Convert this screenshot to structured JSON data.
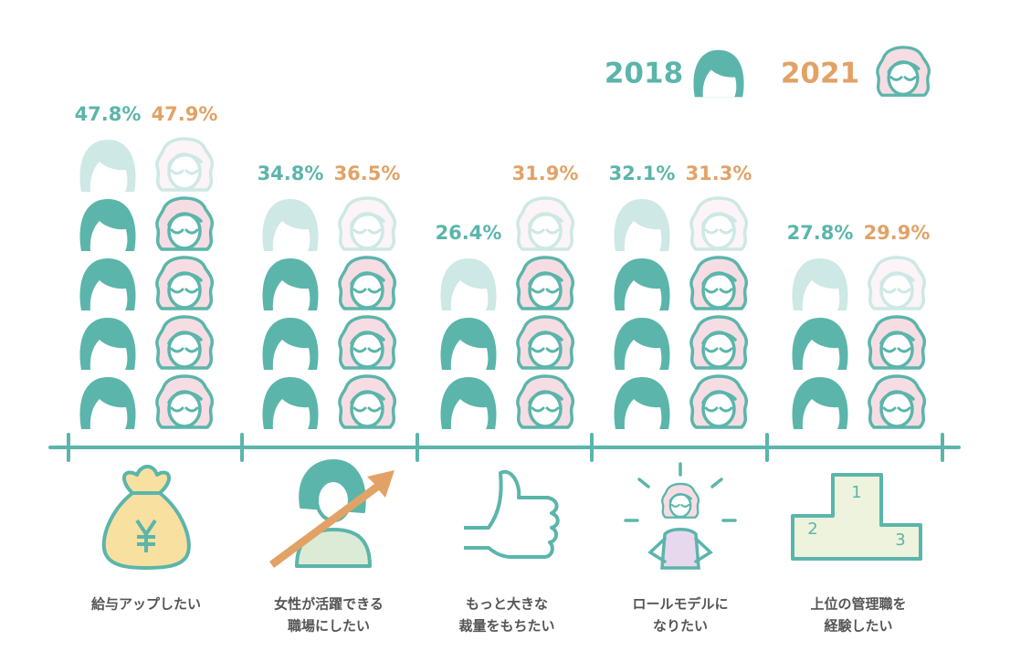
{
  "chart_data": {
    "type": "pictogram",
    "categories": [
      [
        "給与アップしたい"
      ],
      [
        "女性が活躍できる",
        "職場にしたい"
      ],
      [
        "もっと大きな",
        "裁量をもちたい"
      ],
      [
        "ロールモデルに",
        "なりたい"
      ],
      [
        "上位の管理職を",
        "経験したい"
      ]
    ],
    "series": [
      {
        "name": "2018",
        "color": "#5bb5aa",
        "values": [
          47.8,
          34.8,
          26.4,
          32.1,
          27.8
        ],
        "value_labels": [
          "47.8%",
          "34.8%",
          "26.4%",
          "32.1%",
          "27.8%"
        ]
      },
      {
        "name": "2021",
        "color": "#e2a266",
        "values": [
          47.9,
          36.5,
          31.9,
          31.3,
          29.9
        ],
        "value_labels": [
          "47.9%",
          "36.5%",
          "31.9%",
          "31.3%",
          "29.9%"
        ]
      }
    ],
    "podium_labels": [
      "1",
      "2",
      "3"
    ]
  }
}
